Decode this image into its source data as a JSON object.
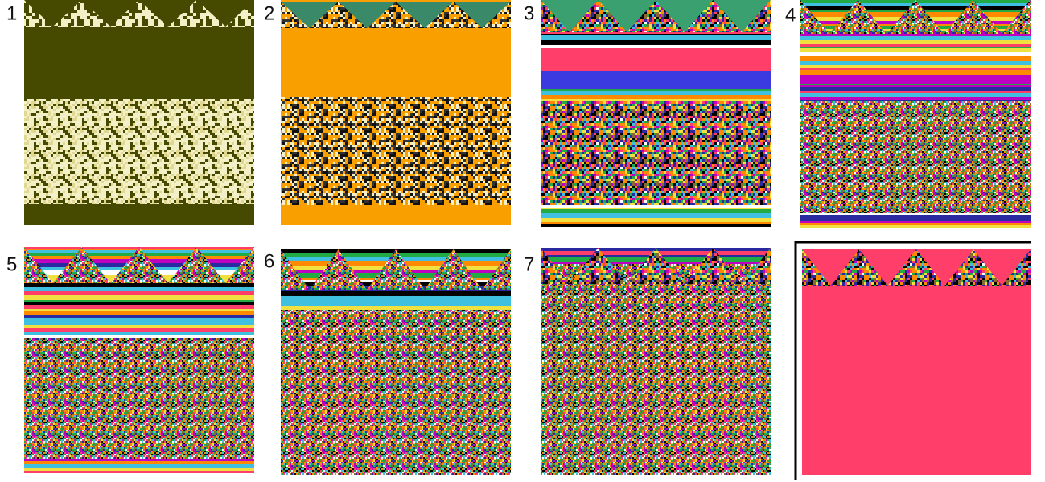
{
  "panels": [
    {
      "label": "1"
    },
    {
      "label": "2"
    },
    {
      "label": "3"
    },
    {
      "label": "4"
    },
    {
      "label": "5"
    },
    {
      "label": "6"
    },
    {
      "label": "7"
    }
  ]
}
